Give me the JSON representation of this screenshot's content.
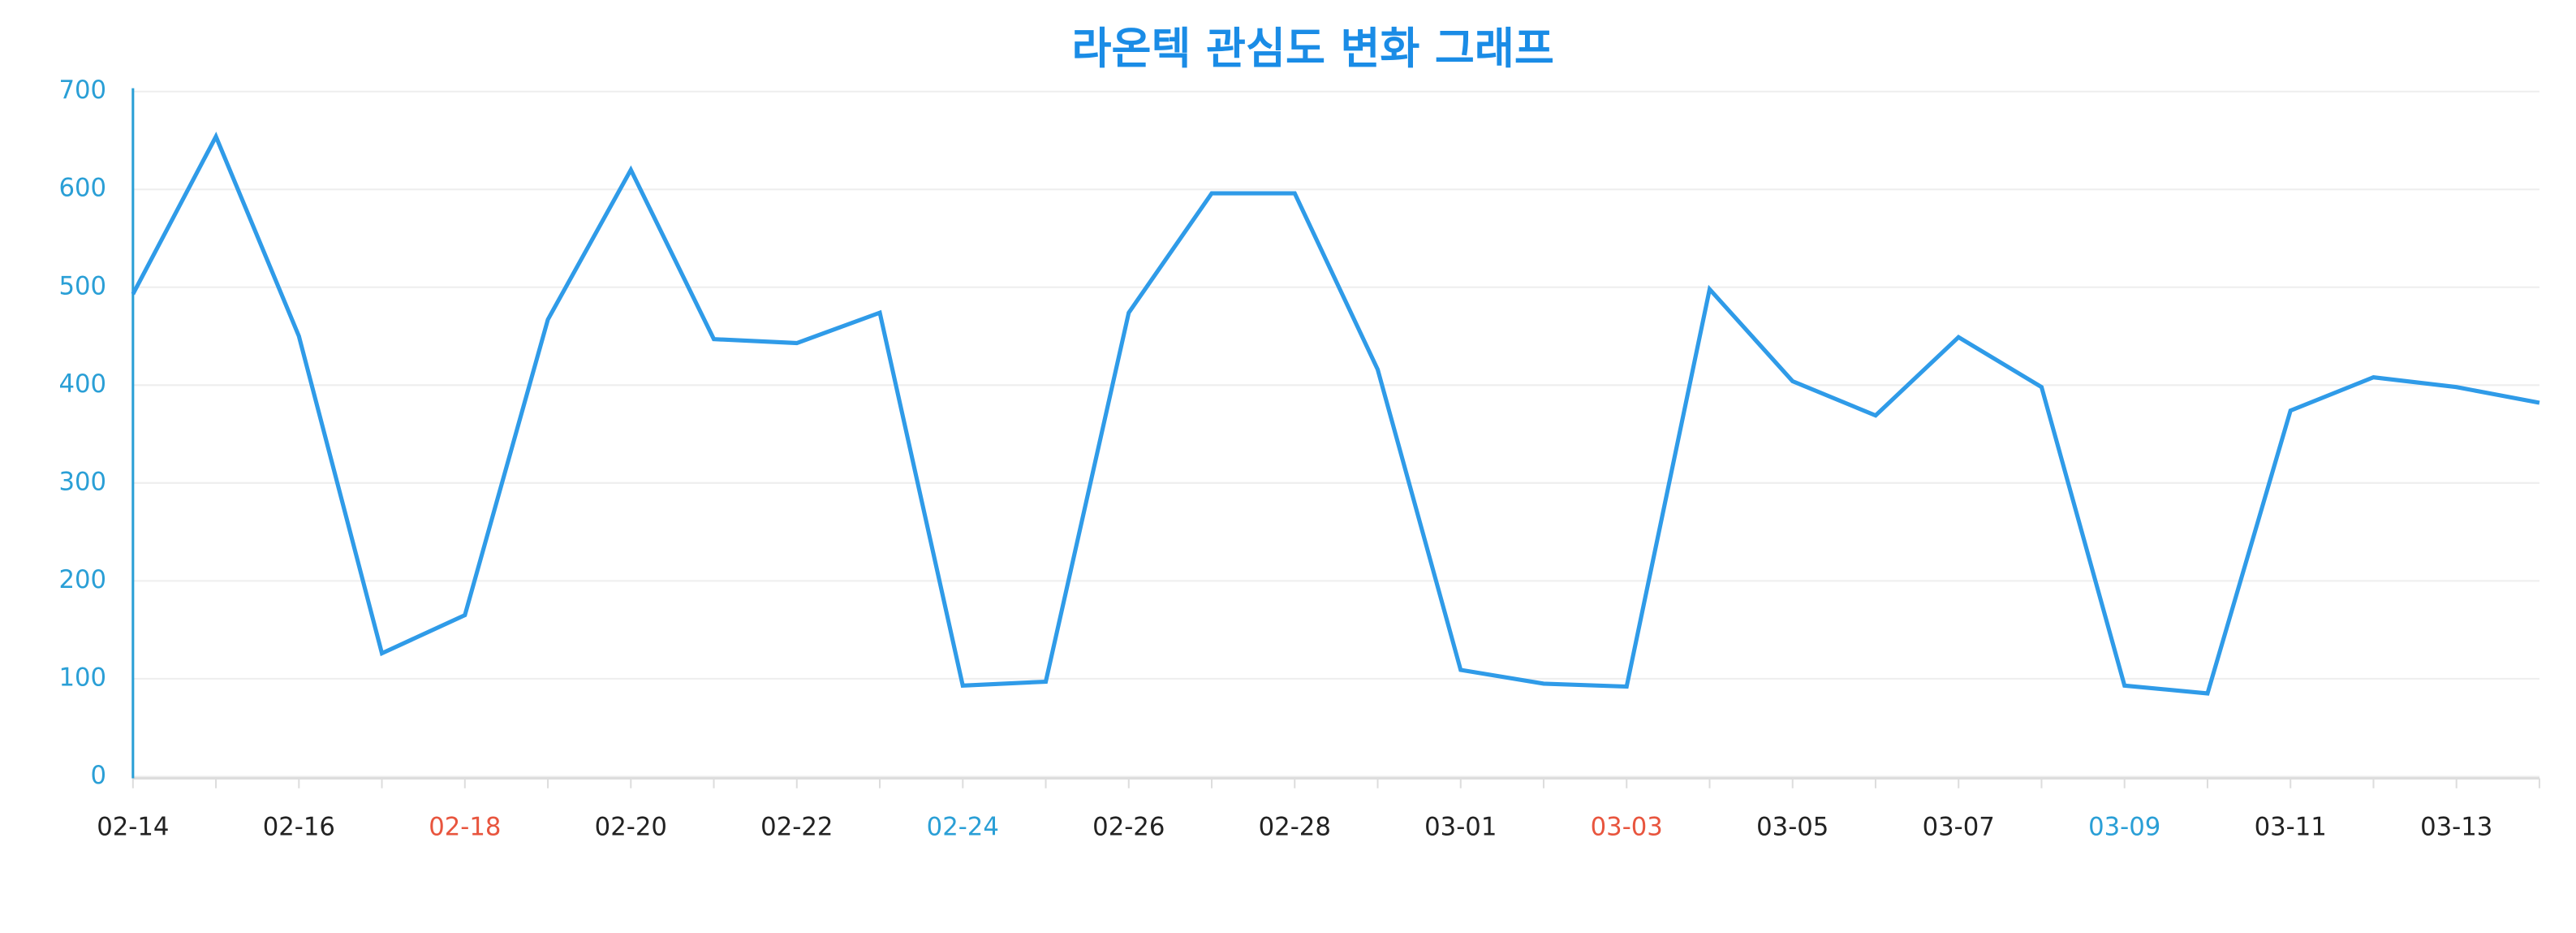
{
  "chart_data": {
    "type": "line",
    "title": "라온텍 관심도 변화 그래프",
    "categories": [
      "02-14",
      null,
      "02-16",
      null,
      "02-18",
      null,
      "02-20",
      null,
      "02-22",
      null,
      "02-24",
      null,
      "02-26",
      null,
      "02-28",
      null,
      "03-01",
      null,
      "03-03",
      null,
      "03-05",
      null,
      "03-07",
      null,
      "03-09",
      null,
      "03-11",
      null,
      "03-13",
      null
    ],
    "category_colors": [
      "#222222",
      "#222222",
      "#222222",
      "#222222",
      "#e8553e",
      "#222222",
      "#222222",
      "#222222",
      "#222222",
      "#222222",
      "#2a9fd6",
      "#222222",
      "#222222",
      "#222222",
      "#222222",
      "#222222",
      "#222222",
      "#222222",
      "#e8553e",
      "#222222",
      "#222222",
      "#222222",
      "#222222",
      "#222222",
      "#2a9fd6",
      "#222222",
      "#222222",
      "#222222",
      "#222222",
      "#222222"
    ],
    "values": [
      493,
      654,
      450,
      126,
      165,
      467,
      620,
      447,
      443,
      474,
      93,
      97,
      474,
      596,
      596,
      416,
      109,
      95,
      92,
      498,
      404,
      369,
      449,
      398,
      93,
      85,
      374,
      408,
      398,
      382
    ],
    "color": "#2f9be8",
    "ylim": [
      0,
      700
    ],
    "yticks": [
      0,
      100,
      200,
      300,
      400,
      500,
      600,
      700
    ],
    "grid": true
  }
}
